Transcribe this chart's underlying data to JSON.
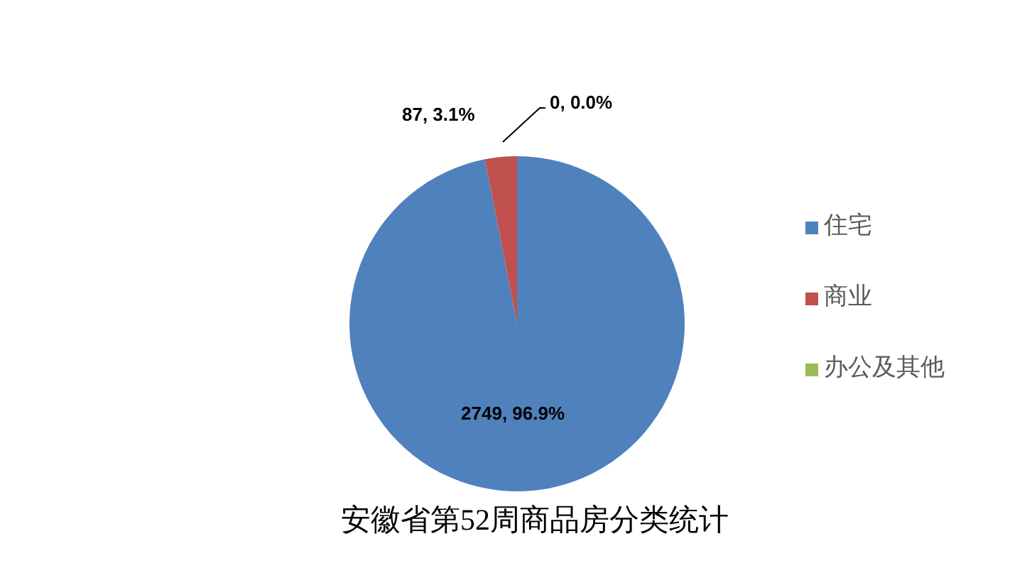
{
  "chart_data": {
    "type": "pie",
    "title": "安徽省第52周商品房分类统计",
    "categories": [
      "住宅",
      "商业",
      "办公及其他"
    ],
    "values": [
      2749,
      87,
      0
    ],
    "colors": [
      "#4f81bd",
      "#c0504d",
      "#9bbb59"
    ],
    "value_labels": [
      "2749, 96.9%",
      "87, 3.1%",
      "0, 0.0%"
    ],
    "legend": "right"
  }
}
